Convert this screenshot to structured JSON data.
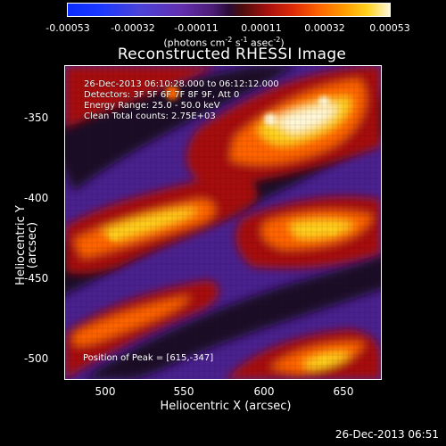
{
  "colorbar": {
    "ticks": [
      "-0.00053",
      "-0.00032",
      "-0.00011",
      "0.00011",
      "0.00032",
      "0.00053"
    ],
    "units_prefix": "(photons cm",
    "units_exp1": "-2",
    "units_s": " s",
    "units_exp2": "-1",
    "units_asec": " asec",
    "units_exp3": "-2",
    "units_suffix": ")"
  },
  "title": "Reconstructed RHESSI Image",
  "info": {
    "time_range": "26-Dec-2013 06:10:28.000 to 06:12:12.000",
    "detectors": "Detectors: 3F 5F 6F 7F 8F 9F, Att 0",
    "energy": "Energy Range: 25.0 - 50.0 keV",
    "clean": "Clean     Total counts: 2.75E+03"
  },
  "peak": "Position of Peak = [615,-347]",
  "axes": {
    "xlabel": "Heliocentric X (arcsec)",
    "ylabel": "Heliocentric Y (arcsec)",
    "xticks": [
      "500",
      "550",
      "600",
      "650"
    ],
    "yticks": [
      "-350",
      "-400",
      "-450",
      "-500"
    ]
  },
  "footer": "26-Dec-2013 06:51",
  "palette": {
    "bg_negative": "#4a218f",
    "dark_band": "#1b0b28",
    "red": "#a7100e",
    "orange": "#ff6400",
    "yellow": "#ffd11e",
    "white_hot": "#fff8d8"
  }
}
